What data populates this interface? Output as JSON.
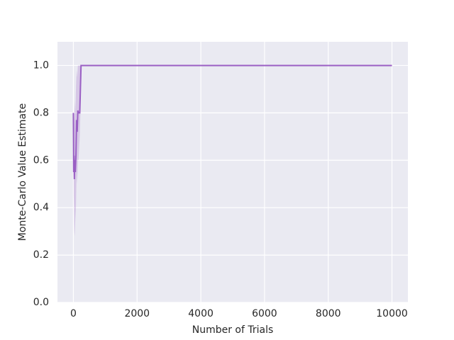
{
  "chart_data": {
    "type": "line",
    "x_label": "Number of Trials",
    "y_label": "Monte-Carlo Value Estimate",
    "x": [
      0,
      10,
      20,
      30,
      40,
      60,
      80,
      100,
      120,
      140,
      160,
      180,
      200,
      220,
      240,
      10000
    ],
    "values": [
      0.8,
      0.55,
      0.62,
      0.52,
      0.6,
      0.55,
      0.62,
      0.77,
      0.72,
      0.81,
      0.8,
      0.8,
      0.8,
      0.9,
      1.0,
      1.0
    ],
    "lower": [
      0.8,
      0.45,
      0.4,
      0.3,
      0.28,
      0.35,
      0.4,
      0.55,
      0.5,
      0.6,
      0.6,
      0.65,
      0.7,
      0.8,
      1.0,
      1.0
    ],
    "upper": [
      0.8,
      0.7,
      0.8,
      0.75,
      0.85,
      0.8,
      0.9,
      0.98,
      0.95,
      1.0,
      1.0,
      1.0,
      1.0,
      1.0,
      1.0,
      1.0
    ],
    "color": "#9a5fc4",
    "xlim": [
      -500,
      10500
    ],
    "xticks": [
      0,
      2000,
      4000,
      6000,
      8000,
      10000
    ],
    "ylim": [
      0,
      1.1
    ],
    "yticks": [
      {
        "value": 0,
        "label": "0.0"
      },
      0.2,
      0.4,
      0.6,
      0.8,
      {
        "value": 1,
        "label": "1.0"
      }
    ],
    "grid": true
  }
}
